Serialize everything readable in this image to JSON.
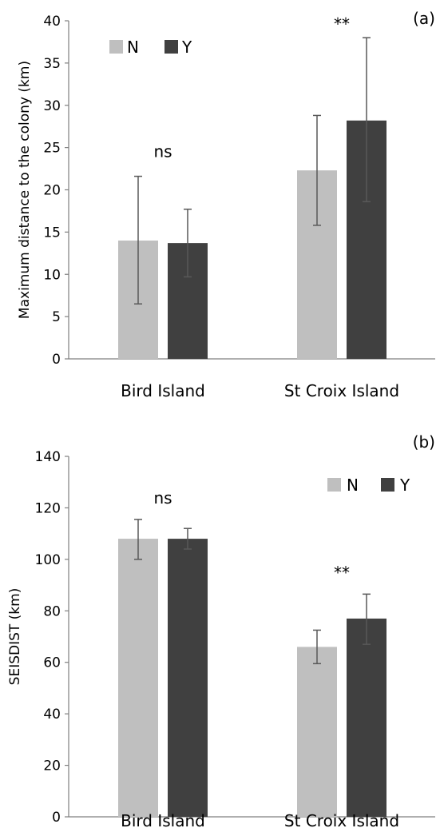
{
  "chart_data": [
    {
      "type": "bar",
      "panel_label": "(a)",
      "ylabel": "Maximum distance to the colony (km)",
      "ylim": [
        0,
        40
      ],
      "yticks": [
        0,
        5,
        10,
        15,
        20,
        25,
        30,
        35,
        40
      ],
      "categories": [
        "Bird Island",
        "St Croix Island"
      ],
      "series": [
        {
          "name": "N",
          "color": "#bfbfbf",
          "values": [
            14.0,
            22.3
          ],
          "err_low": [
            6.5,
            15.8
          ],
          "err_high": [
            21.6,
            28.8
          ]
        },
        {
          "name": "Y",
          "color": "#404040",
          "values": [
            13.7,
            28.2
          ],
          "err_low": [
            9.7,
            18.6
          ],
          "err_high": [
            17.7,
            38.0
          ]
        }
      ],
      "significance": [
        "ns",
        "**"
      ],
      "legend_position": "top-left",
      "grid": false
    },
    {
      "type": "bar",
      "panel_label": "(b)",
      "ylabel": "SEISDIST (km)",
      "ylim": [
        0,
        140
      ],
      "yticks": [
        0,
        20,
        40,
        60,
        80,
        100,
        120,
        140
      ],
      "categories": [
        "Bird Island",
        "St Croix Island"
      ],
      "series": [
        {
          "name": "N",
          "color": "#bfbfbf",
          "values": [
            108,
            66
          ],
          "err_low": [
            100,
            59.5
          ],
          "err_high": [
            115.5,
            72.5
          ]
        },
        {
          "name": "Y",
          "color": "#404040",
          "values": [
            108,
            77
          ],
          "err_low": [
            104,
            67
          ],
          "err_high": [
            112,
            86.5
          ]
        }
      ],
      "significance": [
        "ns",
        "**"
      ],
      "legend_position": "top-right",
      "grid": false
    }
  ]
}
